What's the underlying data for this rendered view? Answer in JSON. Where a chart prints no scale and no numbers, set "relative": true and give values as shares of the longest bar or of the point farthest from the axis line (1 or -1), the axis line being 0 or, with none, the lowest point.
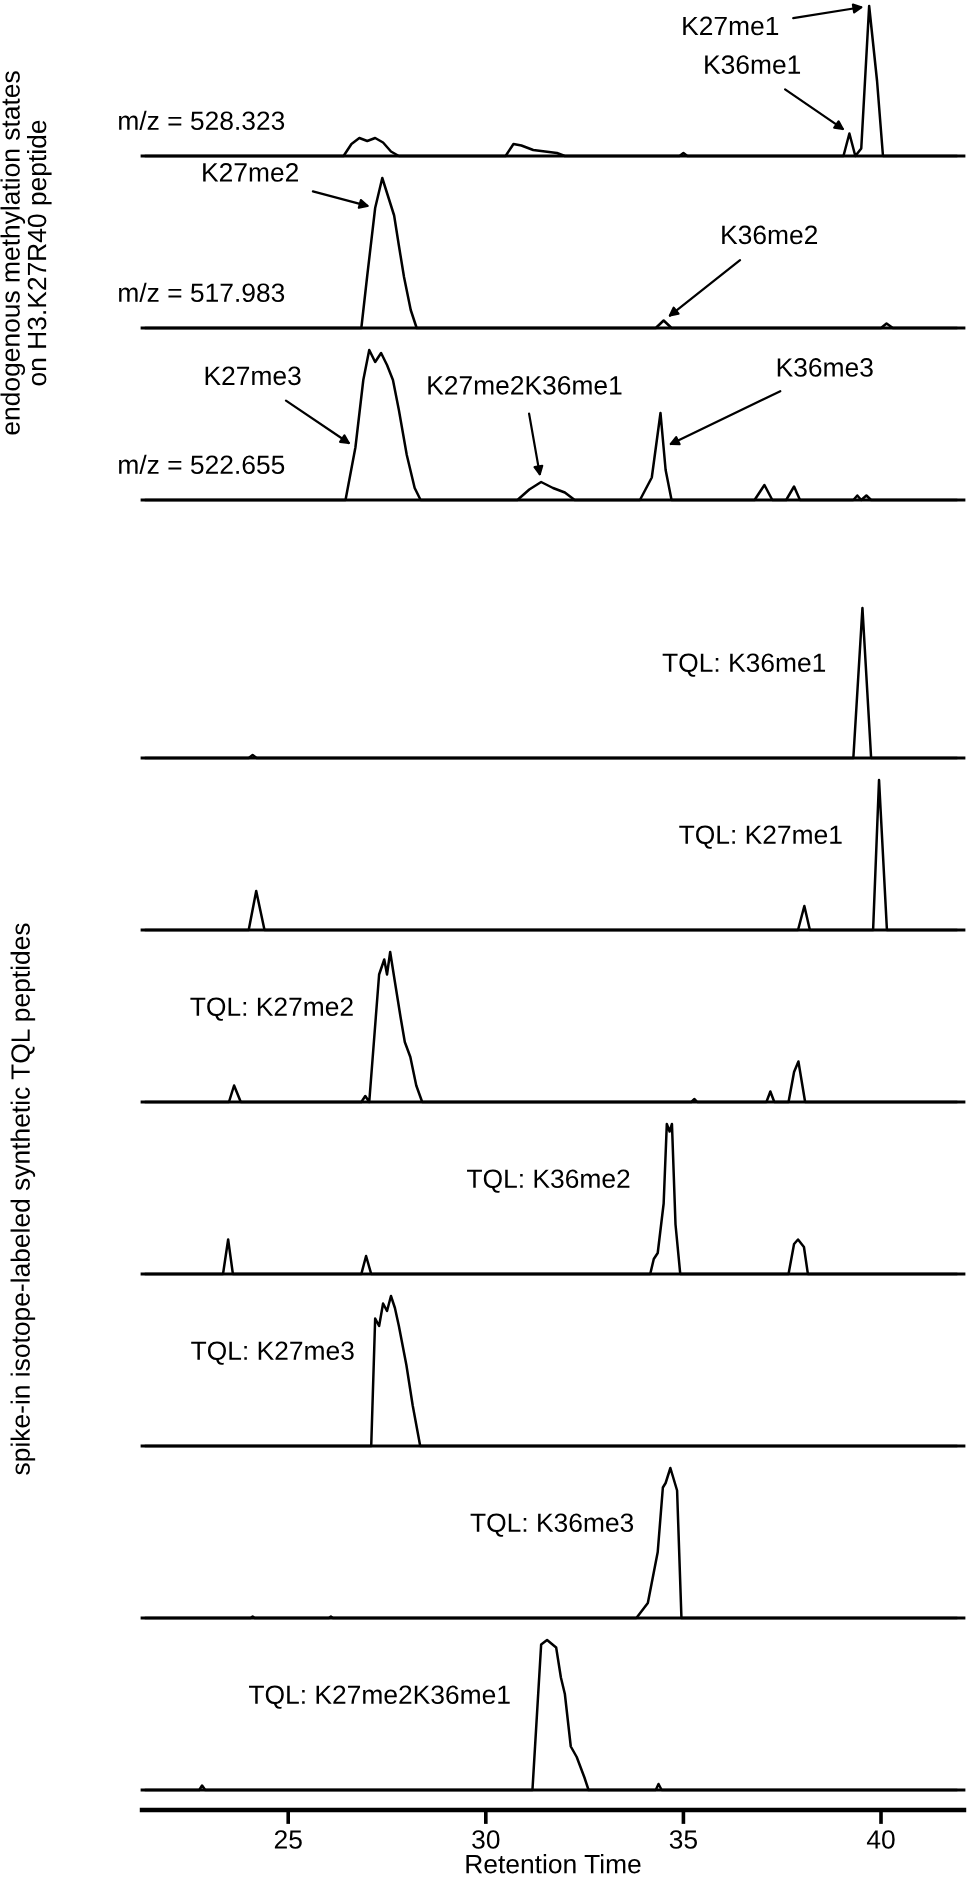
{
  "chart_data": [
    {
      "type": "line",
      "relative": true,
      "xlim": [
        21.3,
        42.1
      ],
      "xticks": [
        25,
        30,
        35,
        40
      ],
      "tick_labels": false,
      "series": [
        {
          "name": "m/z = 528.323",
          "color": "#000000",
          "x": [
            21.4,
            26.4,
            26.6,
            26.8,
            27.0,
            27.2,
            27.4,
            27.6,
            27.8,
            30.5,
            30.7,
            30.9,
            31.2,
            31.5,
            31.8,
            32.0,
            34.9,
            35.0,
            35.1,
            39.05,
            39.2,
            39.35,
            39.5,
            39.7,
            39.9,
            40.05,
            41.9
          ],
          "values": [
            0,
            0,
            0.08,
            0.12,
            0.1,
            0.12,
            0.09,
            0.03,
            0,
            0,
            0.08,
            0.07,
            0.04,
            0.03,
            0.02,
            0,
            0,
            0.02,
            0,
            0,
            0.15,
            0,
            0.05,
            1,
            0.5,
            0,
            0
          ]
        }
      ],
      "annotations": [
        {
          "text": "K27me1",
          "x": 39.7,
          "y": 1
        },
        {
          "text": "K36me1",
          "x": 39.2,
          "y": 0.15
        }
      ]
    },
    {
      "type": "line",
      "relative": true,
      "xlim": [
        21.3,
        42.1
      ],
      "xticks": [
        25,
        30,
        35,
        40
      ],
      "tick_labels": false,
      "ylabel": "endogenous methylation states\non H3.K27R40 peptide",
      "series": [
        {
          "name": "m/z = 517.983",
          "color": "#000000",
          "x": [
            21.4,
            26.85,
            27.0,
            27.2,
            27.38,
            27.5,
            27.68,
            27.8,
            27.93,
            28.1,
            28.25,
            34.3,
            34.5,
            34.7,
            40.0,
            40.14,
            40.3,
            41.9
          ],
          "values": [
            0,
            0,
            0.35,
            0.8,
            1,
            0.9,
            0.75,
            0.55,
            0.34,
            0.12,
            0,
            0,
            0.05,
            0,
            0,
            0.03,
            0,
            0
          ]
        }
      ],
      "annotations": [
        {
          "text": "K27me2",
          "x": 27.2,
          "y": 0.8
        },
        {
          "text": "K36me2",
          "x": 34.5,
          "y": 0.05
        }
      ]
    },
    {
      "type": "line",
      "relative": true,
      "xlim": [
        21.3,
        42.1
      ],
      "xticks": [
        25,
        30,
        35,
        40
      ],
      "tick_labels": false,
      "series": [
        {
          "name": "m/z = 522.655",
          "color": "#000000",
          "x": [
            21.4,
            26.45,
            26.7,
            26.9,
            27.05,
            27.2,
            27.35,
            27.5,
            27.65,
            27.8,
            28.0,
            28.2,
            28.35,
            30.8,
            31.1,
            31.4,
            31.7,
            32.0,
            32.25,
            33.9,
            34.2,
            34.42,
            34.55,
            34.7,
            36.8,
            37.05,
            37.25,
            37.6,
            37.8,
            37.95,
            39.3,
            39.4,
            39.5,
            39.63,
            39.75,
            41.9
          ],
          "values": [
            0,
            0,
            0.35,
            0.8,
            1,
            0.92,
            0.98,
            0.9,
            0.8,
            0.6,
            0.3,
            0.08,
            0,
            0,
            0.07,
            0.12,
            0.08,
            0.05,
            0,
            0,
            0.15,
            0.58,
            0.2,
            0,
            0,
            0.1,
            0,
            0,
            0.09,
            0,
            0,
            0.03,
            0,
            0.03,
            0,
            0
          ]
        }
      ],
      "annotations": [
        {
          "text": "K27me3",
          "x": 26.7,
          "y": 0.35
        },
        {
          "text": "K27me2K36me1",
          "x": 31.4,
          "y": 0.12
        },
        {
          "text": "K36me3",
          "x": 34.5,
          "y": 0.35
        }
      ]
    },
    {
      "type": "line",
      "relative": true,
      "xlim": [
        21.3,
        42.1
      ],
      "xticks": [
        25,
        30,
        35,
        40
      ],
      "tick_labels": false,
      "series": [
        {
          "name": "TQL: K36me1",
          "color": "#000000",
          "x": [
            21.4,
            24.0,
            24.1,
            24.2,
            39.3,
            39.53,
            39.75,
            41.9
          ],
          "values": [
            0,
            0,
            0.02,
            0,
            0,
            1,
            0,
            0
          ]
        }
      ]
    },
    {
      "type": "line",
      "relative": true,
      "xlim": [
        21.3,
        42.1
      ],
      "xticks": [
        25,
        30,
        35,
        40
      ],
      "tick_labels": false,
      "series": [
        {
          "name": "TQL: K27me1",
          "color": "#000000",
          "x": [
            21.4,
            24.0,
            24.19,
            24.4,
            37.9,
            38.06,
            38.2,
            39.8,
            39.95,
            40.15,
            41.9
          ],
          "values": [
            0,
            0,
            0.26,
            0,
            0,
            0.16,
            0,
            0,
            1,
            0,
            0
          ]
        }
      ]
    },
    {
      "type": "line",
      "relative": true,
      "xlim": [
        21.3,
        42.1
      ],
      "xticks": [
        25,
        30,
        35,
        40
      ],
      "tick_labels": false,
      "series": [
        {
          "name": "TQL: K27me2",
          "color": "#000000",
          "x": [
            21.4,
            23.5,
            23.63,
            23.8,
            26.85,
            26.95,
            27.05,
            27.3,
            27.43,
            27.5,
            27.58,
            27.7,
            27.84,
            27.95,
            28.09,
            28.24,
            28.39,
            35.2,
            35.28,
            35.35,
            37.1,
            37.2,
            37.3,
            37.66,
            37.8,
            37.91,
            38.08,
            41.9
          ],
          "values": [
            0,
            0,
            0.11,
            0,
            0,
            0.04,
            0,
            0.85,
            0.95,
            0.85,
            1,
            0.8,
            0.57,
            0.4,
            0.3,
            0.11,
            0,
            0,
            0.02,
            0,
            0,
            0.07,
            0,
            0,
            0.2,
            0.27,
            0,
            0
          ]
        }
      ]
    },
    {
      "type": "line",
      "relative": true,
      "xlim": [
        21.3,
        42.1
      ],
      "xticks": [
        25,
        30,
        35,
        40
      ],
      "tick_labels": false,
      "ylabel": "spike-in isotope-labeled synthetic TQL peptides",
      "series": [
        {
          "name": "TQL: K36me2",
          "color": "#000000",
          "x": [
            21.4,
            23.35,
            23.48,
            23.6,
            26.85,
            26.97,
            27.1,
            34.16,
            34.25,
            34.35,
            34.5,
            34.58,
            34.65,
            34.71,
            34.8,
            34.92,
            37.66,
            37.8,
            37.9,
            38.05,
            38.15,
            41.9
          ],
          "values": [
            0,
            0,
            0.23,
            0,
            0,
            0.12,
            0,
            0,
            0.1,
            0.14,
            0.47,
            1,
            0.95,
            1,
            0.33,
            0,
            0,
            0.2,
            0.23,
            0.18,
            0,
            0
          ]
        }
      ]
    },
    {
      "type": "line",
      "relative": true,
      "xlim": [
        21.3,
        42.1
      ],
      "xticks": [
        25,
        30,
        35,
        40
      ],
      "tick_labels": false,
      "series": [
        {
          "name": "TQL: K27me3",
          "color": "#000000",
          "x": [
            21.4,
            27.1,
            27.2,
            27.3,
            27.4,
            27.5,
            27.6,
            27.7,
            27.8,
            27.99,
            28.15,
            28.34,
            41.9
          ],
          "values": [
            0,
            0,
            0.85,
            0.8,
            0.95,
            0.9,
            1,
            0.92,
            0.8,
            0.54,
            0.27,
            0,
            0
          ]
        }
      ]
    },
    {
      "type": "line",
      "relative": true,
      "xlim": [
        21.3,
        42.1
      ],
      "xticks": [
        25,
        30,
        35,
        40
      ],
      "tick_labels": false,
      "series": [
        {
          "name": "TQL: K36me3",
          "color": "#000000",
          "x": [
            21.4,
            24.05,
            24.1,
            24.15,
            26.03,
            26.08,
            26.13,
            33.81,
            34.1,
            34.35,
            34.48,
            34.55,
            34.67,
            34.84,
            34.95,
            41.9
          ],
          "values": [
            0,
            0,
            0.01,
            0,
            0,
            0.01,
            0,
            0,
            0.1,
            0.44,
            0.87,
            0.9,
            1,
            0.85,
            0,
            0
          ]
        }
      ]
    },
    {
      "type": "line",
      "relative": true,
      "xlim": [
        21.3,
        42.1
      ],
      "xticks": [
        25,
        30,
        35,
        40
      ],
      "tick_labels": "x",
      "xlabel": "Retention Time",
      "series": [
        {
          "name": "TQL: K27me2K36me1",
          "color": "#000000",
          "x": [
            21.4,
            22.75,
            22.82,
            22.9,
            31.18,
            31.4,
            31.55,
            31.78,
            31.9,
            32.0,
            32.15,
            32.3,
            32.4,
            32.5,
            32.6,
            34.3,
            34.37,
            34.45,
            41.9
          ],
          "values": [
            0,
            0,
            0.03,
            0,
            0,
            0.97,
            1,
            0.95,
            0.75,
            0.64,
            0.29,
            0.22,
            0.15,
            0.08,
            0,
            0,
            0.04,
            0,
            0
          ]
        }
      ]
    }
  ]
}
